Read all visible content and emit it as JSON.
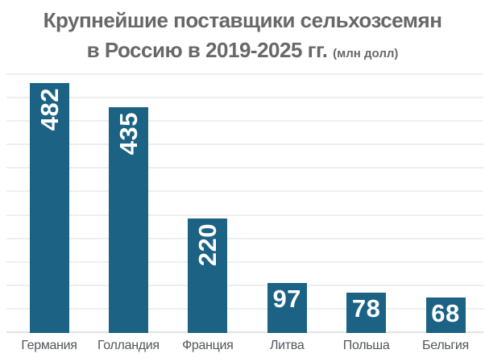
{
  "title": {
    "line1": "Крупнейшие поставщики сельхозсемян",
    "line2_main": "в Россию в 2019-2025 гг.",
    "line2_unit": "(млн долл)"
  },
  "colors": {
    "background": "#ffffff",
    "bar": "#1b6284",
    "title_text": "#686868",
    "axis_label_text": "#53575c",
    "value_label_text": "#ffffff",
    "gridline": "#efefef",
    "baseline": "#e2e2e2"
  },
  "chart_data": {
    "type": "bar",
    "title": "Крупнейшие поставщики сельхозсемян в Россию в 2019-2025 гг.",
    "unit": "млн долл",
    "categories": [
      "Германия",
      "Голландия",
      "Франция",
      "Литва",
      "Польша",
      "Бельгия"
    ],
    "values": [
      482,
      435,
      220,
      97,
      78,
      68
    ],
    "value_label_orientation": [
      "vertical",
      "vertical",
      "vertical",
      "horizontal",
      "horizontal",
      "horizontal"
    ],
    "xlabel": "",
    "ylabel": "",
    "ylim": [
      0,
      500
    ],
    "gridline_count": 12,
    "grid": true,
    "legend": false
  }
}
